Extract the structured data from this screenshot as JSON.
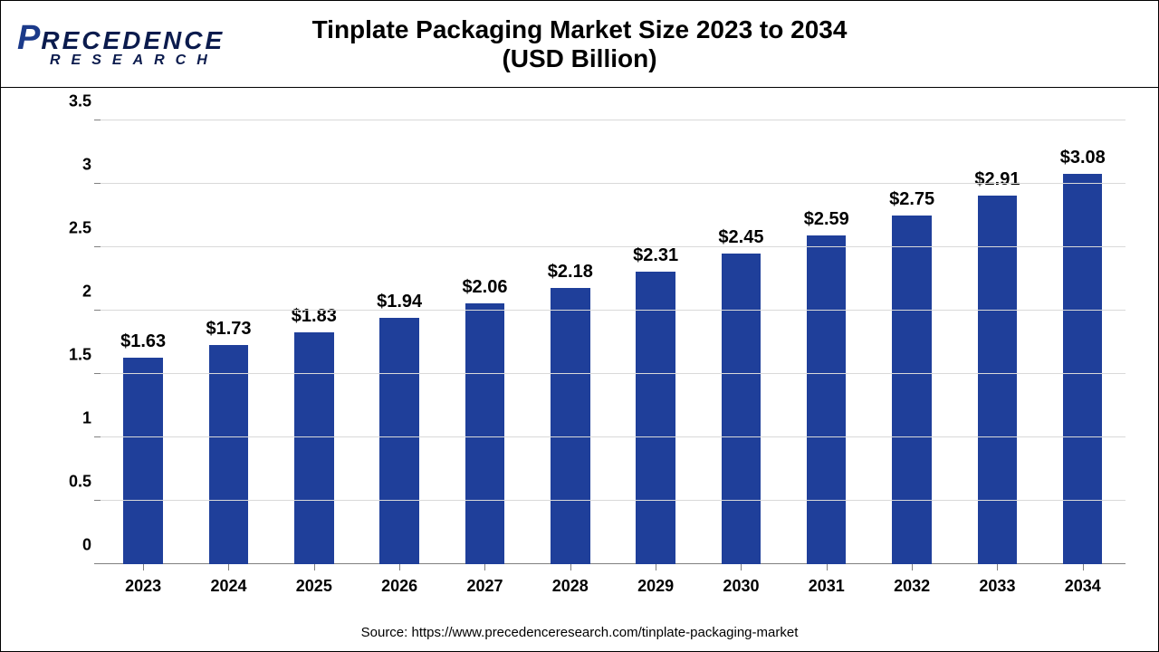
{
  "title_line1": "Tinplate Packaging Market Size 2023 to 2034",
  "title_line2": "(USD Billion)",
  "logo": {
    "p": "P",
    "rest": "RECEDENCE",
    "sub": "RESEARCH",
    "p_color": "#1b3a8a",
    "rest_color": "#0b1b4d",
    "sub_color": "#0b1b4d"
  },
  "source": "Source: https://www.precedenceresearch.com/tinplate-packaging-market",
  "chart": {
    "type": "bar",
    "categories": [
      "2023",
      "2024",
      "2025",
      "2026",
      "2027",
      "2028",
      "2029",
      "2030",
      "2031",
      "2032",
      "2033",
      "2034"
    ],
    "values": [
      1.63,
      1.73,
      1.83,
      1.94,
      2.06,
      2.18,
      2.31,
      2.45,
      2.59,
      2.75,
      2.91,
      3.08
    ],
    "value_labels": [
      "$1.63",
      "$1.73",
      "$1.83",
      "$1.94",
      "$2.06",
      "$2.18",
      "$2.31",
      "$2.45",
      "$2.59",
      "$2.75",
      "$2.91",
      "$3.08"
    ],
    "bar_color": "#1f3f9a",
    "ylim": [
      0,
      3.5
    ],
    "ytick_step": 0.5,
    "yticks": [
      "0",
      "0.5",
      "1",
      "1.5",
      "2",
      "2.5",
      "3",
      "3.5"
    ],
    "grid_color": "#d9d9d9",
    "axis_color": "#808080",
    "label_fontsize": 20,
    "tick_fontsize": 18,
    "bar_width_pct": 46,
    "title_fontsize": 28,
    "background_color": "#ffffff"
  }
}
